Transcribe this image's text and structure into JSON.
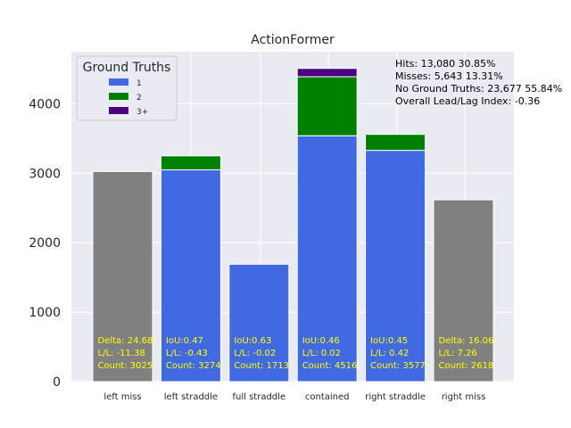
{
  "chart_data": {
    "type": "bar",
    "title": "ActionFormer",
    "xlabel": "",
    "ylabel": "",
    "ylim": [
      0,
      4750
    ],
    "yticks": [
      0,
      1000,
      2000,
      3000,
      4000
    ],
    "grid": true,
    "categories": [
      "left miss",
      "left straddle",
      "full straddle",
      "contained",
      "right straddle",
      "right miss"
    ],
    "series": [
      {
        "name": "",
        "color": "#808080",
        "values": [
          3025,
          0,
          0,
          0,
          0,
          2618
        ]
      },
      {
        "name": "1",
        "color": "#4169e1",
        "values": [
          0,
          3050,
          1690,
          3540,
          3330,
          0
        ]
      },
      {
        "name": "2",
        "color": "#008000",
        "values": [
          0,
          200,
          0,
          850,
          230,
          0
        ]
      },
      {
        "name": "3+",
        "color": "#4b0082",
        "values": [
          0,
          0,
          0,
          120,
          0,
          0
        ]
      }
    ],
    "legend": {
      "title": "Ground Truths",
      "placement": "top-left",
      "entries": [
        "1",
        "2",
        "3+"
      ]
    },
    "annotations": [
      [
        "Delta: 24.68",
        "L/L: -11.38",
        "Count: 3025"
      ],
      [
        "IoU:0.47",
        "L/L: -0.43",
        "Count: 3274"
      ],
      [
        "IoU:0.63",
        "L/L: -0.02",
        "Count: 1713"
      ],
      [
        "IoU:0.46",
        "L/L: 0.02",
        "Count: 4516"
      ],
      [
        "IoU:0.45",
        "L/L: 0.42",
        "Count: 3577"
      ],
      [
        "Delta: 16.06",
        "L/L: 7.26",
        "Count: 2618"
      ]
    ],
    "stats": [
      "Hits: 13,080  30.85%",
      "Misses: 5,643  13.31%",
      "No Ground Truths: 23,677  55.84%",
      "Overall Lead/Lag Index: -0.36"
    ]
  }
}
